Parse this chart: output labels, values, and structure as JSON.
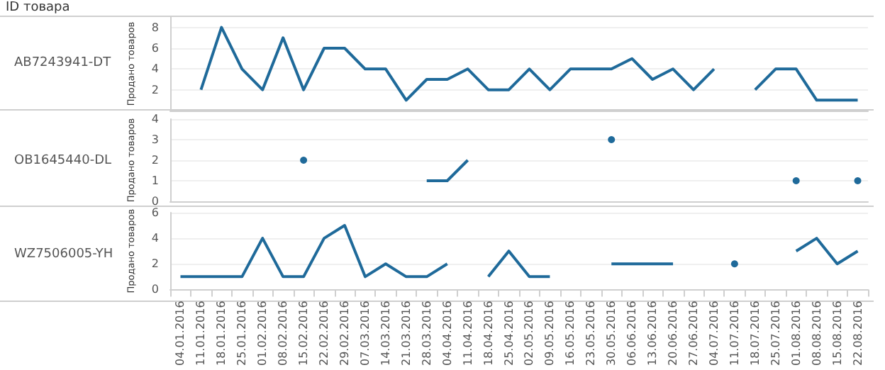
{
  "chart_data": [
    {
      "type": "line",
      "title": "AB7243941-DT",
      "ylabel": "Продано товаров",
      "annotations": [
        "ID товара"
      ],
      "categories": [
        "04.01.2016",
        "11.01.2016",
        "18.01.2016",
        "25.01.2016",
        "01.02.2016",
        "08.02.2016",
        "15.02.2016",
        "22.02.2016",
        "29.02.2016",
        "07.03.2016",
        "14.03.2016",
        "21.03.2016",
        "28.03.2016",
        "04.04.2016",
        "11.04.2016",
        "18.04.2016",
        "25.04.2016",
        "02.05.2016",
        "09.05.2016",
        "16.05.2016",
        "23.05.2016",
        "30.05.2016",
        "06.06.2016",
        "13.06.2016",
        "20.06.2016",
        "27.06.2016",
        "04.07.2016",
        "11.07.2016",
        "18.07.2016",
        "25.07.2016",
        "01.08.2016",
        "08.08.2016",
        "15.08.2016",
        "22.08.2016"
      ],
      "values": [
        null,
        2,
        8,
        4,
        2,
        7,
        2,
        6,
        6,
        4,
        4,
        1,
        3,
        3,
        4,
        2,
        2,
        4,
        2,
        4,
        4,
        4,
        5,
        3,
        4,
        2,
        4,
        null,
        2,
        4,
        4,
        1,
        1,
        1
      ],
      "color": "#1f6a9a",
      "ylim": [
        0,
        9
      ],
      "yticks": [
        2,
        4,
        6,
        8
      ],
      "grid": "y",
      "tick_labels": "y"
    },
    {
      "type": "line",
      "title": "OB1645440-DL",
      "ylabel": "Продано товаров",
      "categories": [
        "04.01.2016",
        "11.01.2016",
        "18.01.2016",
        "25.01.2016",
        "01.02.2016",
        "08.02.2016",
        "15.02.2016",
        "22.02.2016",
        "29.02.2016",
        "07.03.2016",
        "14.03.2016",
        "21.03.2016",
        "28.03.2016",
        "04.04.2016",
        "11.04.2016",
        "18.04.2016",
        "25.04.2016",
        "02.05.2016",
        "09.05.2016",
        "16.05.2016",
        "23.05.2016",
        "30.05.2016",
        "06.06.2016",
        "13.06.2016",
        "20.06.2016",
        "27.06.2016",
        "04.07.2016",
        "11.07.2016",
        "18.07.2016",
        "25.07.2016",
        "01.08.2016",
        "08.08.2016",
        "15.08.2016",
        "22.08.2016"
      ],
      "values": [
        null,
        null,
        null,
        null,
        null,
        null,
        2,
        null,
        null,
        null,
        null,
        null,
        1,
        1,
        2,
        null,
        null,
        null,
        null,
        null,
        null,
        3,
        null,
        null,
        null,
        null,
        null,
        null,
        null,
        null,
        1,
        null,
        null,
        1
      ],
      "color": "#1f6a9a",
      "ylim": [
        0,
        4
      ],
      "yticks": [
        0,
        1,
        2,
        3,
        4
      ],
      "grid": "y",
      "tick_labels": "y"
    },
    {
      "type": "line",
      "title": "WZ7506005-YH",
      "ylabel": "Продано товаров",
      "categories": [
        "04.01.2016",
        "11.01.2016",
        "18.01.2016",
        "25.01.2016",
        "01.02.2016",
        "08.02.2016",
        "15.02.2016",
        "22.02.2016",
        "29.02.2016",
        "07.03.2016",
        "14.03.2016",
        "21.03.2016",
        "28.03.2016",
        "04.04.2016",
        "11.04.2016",
        "18.04.2016",
        "25.04.2016",
        "02.05.2016",
        "09.05.2016",
        "16.05.2016",
        "23.05.2016",
        "30.05.2016",
        "06.06.2016",
        "13.06.2016",
        "20.06.2016",
        "27.06.2016",
        "04.07.2016",
        "11.07.2016",
        "18.07.2016",
        "25.07.2016",
        "01.08.2016",
        "08.08.2016",
        "15.08.2016",
        "22.08.2016"
      ],
      "values": [
        1,
        1,
        1,
        1,
        4,
        1,
        1,
        4,
        5,
        1,
        2,
        1,
        1,
        2,
        null,
        1,
        3,
        1,
        1,
        null,
        null,
        2,
        2,
        2,
        2,
        null,
        null,
        2,
        null,
        null,
        3,
        4,
        2,
        3
      ],
      "color": "#1f6a9a",
      "ylim": [
        0,
        6
      ],
      "yticks": [
        0,
        2,
        4,
        6
      ],
      "grid": "y"
    }
  ]
}
